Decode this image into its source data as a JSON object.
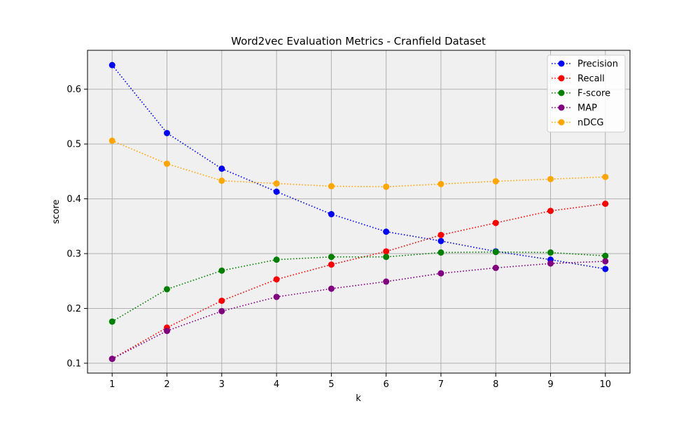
{
  "chart_data": {
    "type": "line",
    "title": "Word2vec Evaluation Metrics - Cranfield Dataset",
    "xlabel": "k",
    "ylabel": "score",
    "x": [
      1,
      2,
      3,
      4,
      5,
      6,
      7,
      8,
      9,
      10
    ],
    "xticks": [
      "1",
      "2",
      "3",
      "4",
      "5",
      "6",
      "7",
      "8",
      "9",
      "10"
    ],
    "yticks": [
      "0.1",
      "0.2",
      "0.3",
      "0.4",
      "0.5",
      "0.6"
    ],
    "ytick_values": [
      0.1,
      0.2,
      0.3,
      0.4,
      0.5,
      0.6
    ],
    "xlim": [
      0.55,
      10.45
    ],
    "ylim": [
      0.082,
      0.671
    ],
    "grid": true,
    "legend_position": "top-right",
    "line_style": "dotted",
    "marker": "circle",
    "plot_background": "#f0f0f0",
    "series": [
      {
        "name": "Precision",
        "color": "#0000ff",
        "values": [
          0.644,
          0.52,
          0.455,
          0.413,
          0.372,
          0.34,
          0.323,
          0.304,
          0.289,
          0.272
        ]
      },
      {
        "name": "Recall",
        "color": "#ff0000",
        "values": [
          0.108,
          0.165,
          0.214,
          0.253,
          0.28,
          0.304,
          0.334,
          0.356,
          0.378,
          0.391
        ]
      },
      {
        "name": "F-score",
        "color": "#008000",
        "values": [
          0.176,
          0.235,
          0.269,
          0.289,
          0.294,
          0.294,
          0.302,
          0.303,
          0.302,
          0.296
        ]
      },
      {
        "name": "MAP",
        "color": "#800080",
        "values": [
          0.108,
          0.159,
          0.195,
          0.221,
          0.236,
          0.249,
          0.264,
          0.274,
          0.282,
          0.286
        ]
      },
      {
        "name": "nDCG",
        "color": "#ffa500",
        "values": [
          0.506,
          0.464,
          0.433,
          0.428,
          0.423,
          0.422,
          0.427,
          0.432,
          0.436,
          0.44
        ]
      }
    ]
  }
}
